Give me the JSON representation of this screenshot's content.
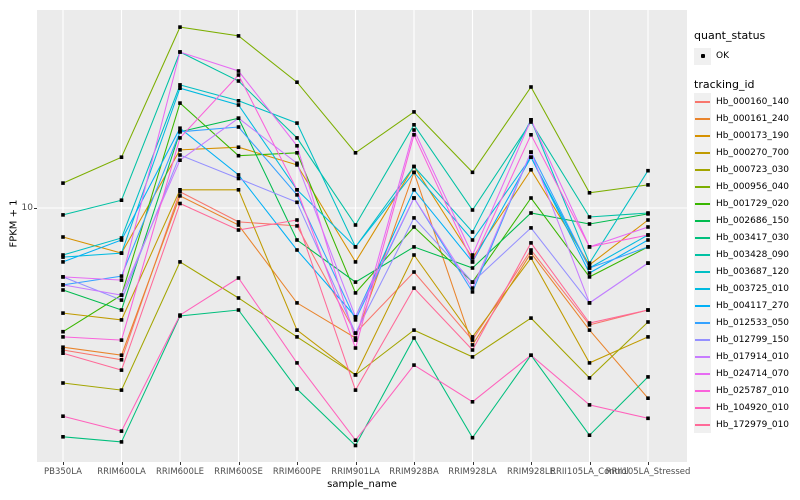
{
  "chart": {
    "y_axis": {
      "title": "FPKM + 1",
      "tick_label": "10"
    },
    "x_axis": {
      "title": "sample_name"
    },
    "legend": {
      "quant_status": {
        "title": "quant_status",
        "items": [
          {
            "label": "OK",
            "marker": "black-point"
          }
        ]
      },
      "tracking_id": {
        "title": "tracking_id"
      }
    }
  },
  "chart_data": {
    "type": "line",
    "title": "",
    "xlabel": "sample_name",
    "ylabel": "FPKM + 1",
    "y_scale": "log10",
    "y_breaks": [
      10
    ],
    "ylim": [
      1.25,
      50
    ],
    "grid": "white on grey panel",
    "legend_position": "right",
    "point_marker": {
      "shape": "square",
      "color": "#000000",
      "legend_label": "OK"
    },
    "x_categories": [
      "PB350LA",
      "RRIM600LA",
      "RRIM600LE",
      "RRIM600SE",
      "RRIM600PE",
      "RRIM901LA",
      "RRIM928BA",
      "RRIM928LA",
      "RRIM928LE",
      "RRII105LA_Control",
      "RRII105LA_Stressed"
    ],
    "series": [
      {
        "name": "Hb_000160_140",
        "color": "#F8766D",
        "values": [
          2.94,
          2.7,
          11.5,
          8.87,
          8.57,
          3.4,
          5.76,
          3.2,
          6.96,
          3.65,
          4.15
        ]
      },
      {
        "name": "Hb_000161_240",
        "color": "#E9842C",
        "values": [
          3.01,
          2.81,
          11.1,
          8.64,
          4.41,
          3.26,
          13.6,
          3.07,
          6.78,
          3.49,
          1.94
        ]
      },
      {
        "name": "Hb_000173_190",
        "color": "#D69100",
        "values": [
          7.79,
          6.78,
          16.5,
          16.9,
          14.5,
          6.28,
          14.3,
          6.5,
          13.9,
          6.12,
          9.02
        ]
      },
      {
        "name": "Hb_000270_700",
        "color": "#C09B00",
        "values": [
          4.04,
          3.81,
          11.7,
          11.7,
          3.49,
          2.37,
          6.67,
          3.29,
          6.5,
          2.63,
          3.29
        ]
      },
      {
        "name": "Hb_000723_030",
        "color": "#A3A500",
        "values": [
          2.21,
          2.08,
          6.28,
          4.6,
          3.29,
          2.37,
          3.49,
          2.77,
          3.87,
          2.31,
          3.74
        ]
      },
      {
        "name": "Hb_000956_040",
        "color": "#7CAE00",
        "values": [
          12.4,
          15.5,
          47.6,
          44.1,
          29.6,
          16.1,
          22.9,
          13.6,
          28.4,
          11.4,
          12.2
        ]
      },
      {
        "name": "Hb_001729_020",
        "color": "#39B600",
        "values": [
          3.44,
          4.72,
          24.7,
          15.7,
          16.1,
          4.81,
          8.49,
          5.28,
          10.9,
          5.52,
          7.15
        ]
      },
      {
        "name": "Hb_002686_150",
        "color": "#00BB4E",
        "values": [
          4.93,
          4.15,
          19.3,
          21.7,
          7.59,
          5.28,
          7.15,
          5.96,
          9.58,
          8.71,
          9.5
        ]
      },
      {
        "name": "Hb_003417_030",
        "color": "#00BF7D",
        "values": [
          1.39,
          1.33,
          3.94,
          4.15,
          2.1,
          1.29,
          3.26,
          1.38,
          2.81,
          1.41,
          2.33
        ]
      },
      {
        "name": "Hb_003428_090",
        "color": "#00C1A3",
        "values": [
          9.42,
          10.7,
          38.4,
          29.9,
          18.3,
          8.64,
          20.5,
          9.83,
          21.0,
          9.25,
          9.58
        ]
      },
      {
        "name": "Hb_003687_120",
        "color": "#00BFC4",
        "values": [
          6.67,
          7.72,
          28.9,
          25.2,
          20.8,
          7.15,
          14.3,
          8.13,
          21.4,
          6.22,
          13.8
        ]
      },
      {
        "name": "Hb_003725_010",
        "color": "#00BAE0",
        "values": [
          6.55,
          6.78,
          28.1,
          24.3,
          11.7,
          7.15,
          13.6,
          7.59,
          15.5,
          5.96,
          7.92
        ]
      },
      {
        "name": "Hb_004117_270",
        "color": "#00B0F6",
        "values": [
          6.28,
          7.59,
          19.9,
          13.3,
          6.96,
          3.91,
          11.7,
          6.28,
          15.5,
          5.71,
          7.59
        ]
      },
      {
        "name": "Hb_012533_050",
        "color": "#35A2FF",
        "values": [
          5.15,
          5.56,
          19.3,
          20.1,
          11.2,
          3.81,
          10.9,
          4.85,
          16.2,
          5.96,
          7.15
        ]
      },
      {
        "name": "Hb_012799_150",
        "color": "#9590FF",
        "values": [
          5.52,
          4.52,
          15.8,
          12.9,
          10.5,
          3.4,
          9.18,
          5.28,
          8.42,
          4.41,
          6.22
        ]
      },
      {
        "name": "Hb_017914_010",
        "color": "#C77CFF",
        "values": [
          5.15,
          4.72,
          15.1,
          21.7,
          14.7,
          3.91,
          10.9,
          5.01,
          16.2,
          4.41,
          6.22
        ]
      },
      {
        "name": "Hb_024714_070",
        "color": "#E76BF3",
        "values": [
          5.52,
          5.37,
          38.4,
          32.6,
          17.1,
          3.2,
          19.6,
          6.67,
          21.4,
          7.15,
          8.49
        ]
      },
      {
        "name": "Hb_025787_010",
        "color": "#FA62DB",
        "values": [
          3.29,
          3.2,
          18.3,
          31.5,
          11.7,
          2.99,
          18.8,
          6.28,
          18.8,
          7.15,
          7.92
        ]
      },
      {
        "name": "Hb_104920_010",
        "color": "#FF62BC",
        "values": [
          1.66,
          1.46,
          3.97,
          5.47,
          2.63,
          1.35,
          2.58,
          1.88,
          2.81,
          1.83,
          1.63
        ]
      },
      {
        "name": "Hb_172979_010",
        "color": "#FF6A98",
        "values": [
          2.86,
          2.47,
          10.4,
          8.27,
          9.02,
          2.08,
          5.01,
          2.94,
          7.4,
          3.71,
          4.15
        ]
      }
    ],
    "panel_colors": {
      "background": "#EBEBEB",
      "gridline": "#FFFFFF",
      "axis_text": "#4D4D4D"
    }
  }
}
